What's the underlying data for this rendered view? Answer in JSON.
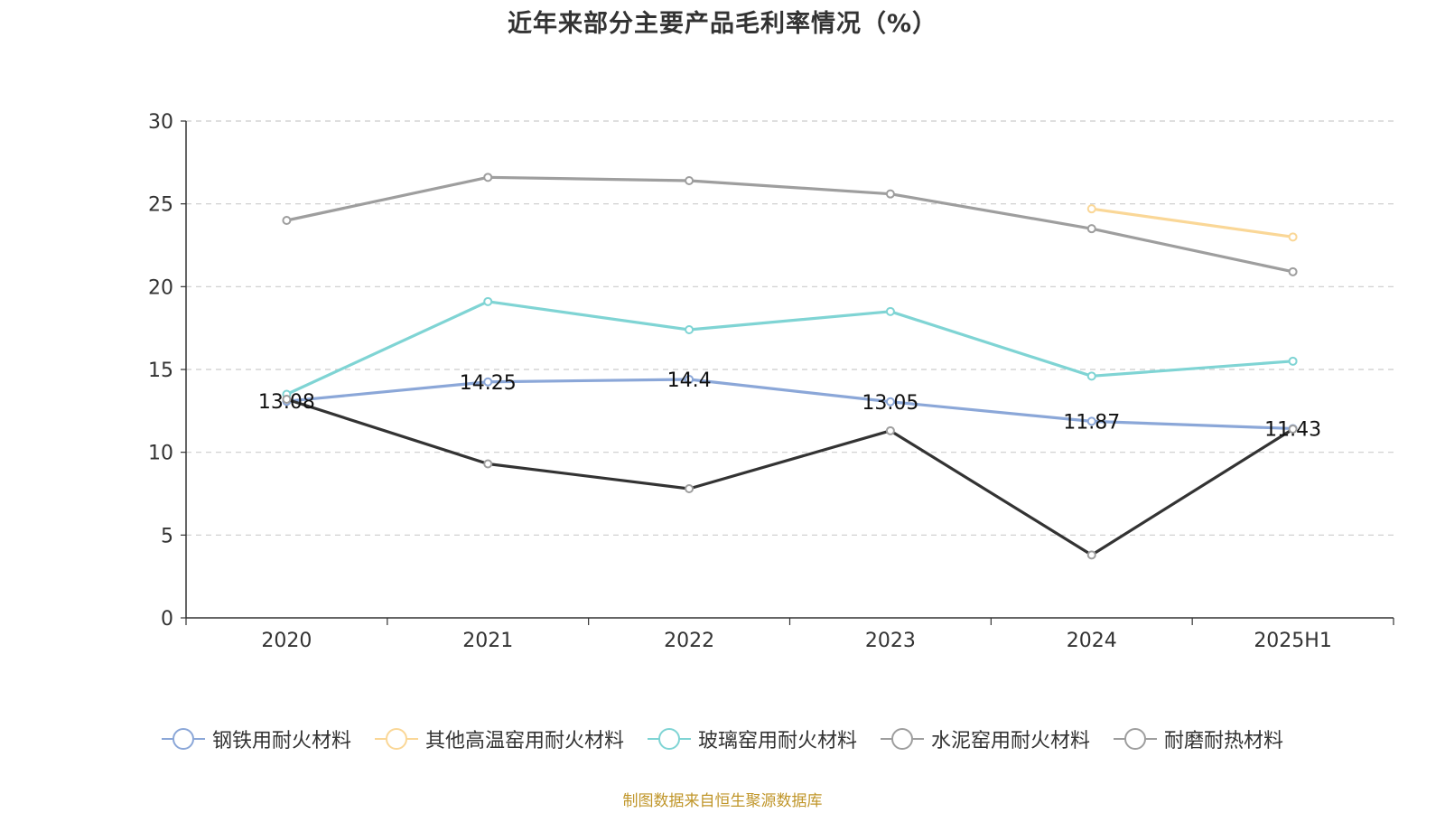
{
  "chart_data": {
    "type": "line",
    "title": "近年来部分主要产品毛利率情况（%）",
    "categories": [
      "2020",
      "2021",
      "2022",
      "2023",
      "2024",
      "2025H1"
    ],
    "ylim": [
      0,
      30
    ],
    "yticks": [
      0,
      5,
      10,
      15,
      20,
      25,
      30
    ],
    "grid": true,
    "legend_position": "bottom",
    "series": [
      {
        "name": "钢铁用耐火材料",
        "color": "#8ba7d8",
        "values": [
          13.08,
          14.25,
          14.4,
          13.05,
          11.87,
          11.43
        ],
        "labels": [
          "13.08",
          "14.25",
          "14.4",
          "13.05",
          "11.87",
          "11.43"
        ]
      },
      {
        "name": "其他高温窑用耐火材料",
        "color": "#fad797",
        "values": [
          null,
          null,
          null,
          null,
          24.7,
          23.0
        ]
      },
      {
        "name": "玻璃窑用耐火材料",
        "color": "#7fd4d4",
        "values": [
          13.5,
          19.1,
          17.4,
          18.5,
          14.6,
          15.5
        ]
      },
      {
        "name": "水泥窑用耐火材料",
        "color": "#9e9e9e",
        "values": [
          24.0,
          26.6,
          26.4,
          25.6,
          23.5,
          20.9
        ]
      },
      {
        "name": "耐磨耐热材料",
        "color": "#333333",
        "legend_color": "#9e9e9e",
        "values": [
          13.2,
          9.3,
          7.8,
          11.3,
          3.8,
          11.4
        ]
      }
    ]
  },
  "source": "制图数据来自恒生聚源数据库"
}
